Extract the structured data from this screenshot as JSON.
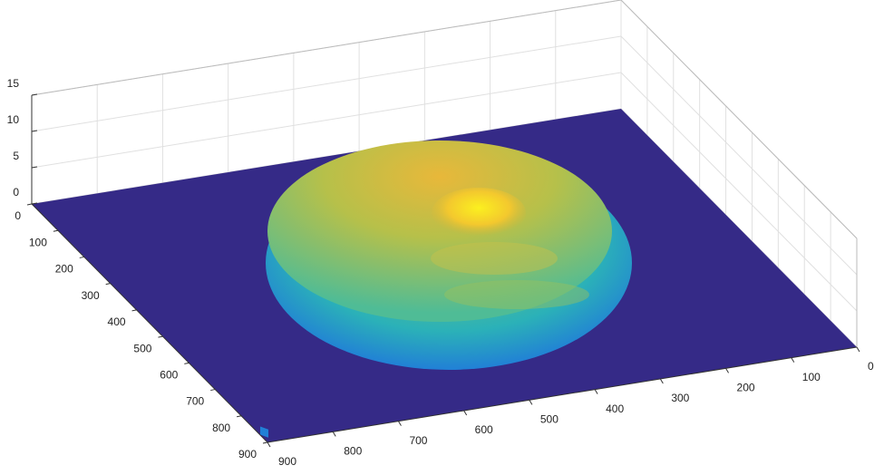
{
  "chart_data": {
    "type": "surface",
    "xlim": [
      0,
      900
    ],
    "ylim": [
      0,
      900
    ],
    "zlim": [
      0,
      15
    ],
    "xticks": [
      0,
      100,
      200,
      300,
      400,
      500,
      600,
      700,
      800,
      900
    ],
    "yticks": [
      0,
      100,
      200,
      300,
      400,
      500,
      600,
      700,
      800,
      900
    ],
    "zticks": [
      0,
      5,
      10,
      15
    ],
    "grid": true,
    "color": "#352a87"
  }
}
